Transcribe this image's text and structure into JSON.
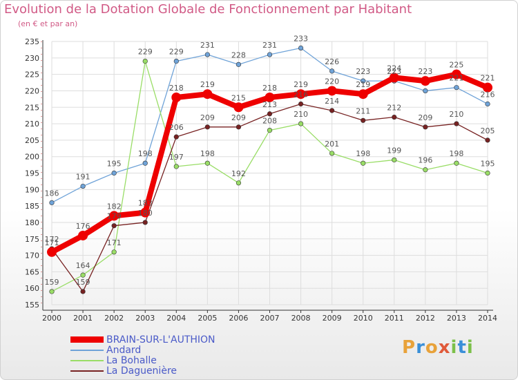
{
  "header": {
    "title": "Evolution de la Dotation Globale de Fonctionnement par Habitant",
    "subtitle": "(en € et par an)"
  },
  "logo": {
    "text": "Proxiti",
    "letters": [
      {
        "ch": "P",
        "color": "#e8a23a"
      },
      {
        "ch": "r",
        "color": "#3a8fd8"
      },
      {
        "ch": "o",
        "color": "#e8a23a"
      },
      {
        "ch": "x",
        "color": "#e05a3a"
      },
      {
        "ch": "i",
        "color": "#7cc04a"
      },
      {
        "ch": "t",
        "color": "#3a8fd8"
      },
      {
        "ch": "i",
        "color": "#7cc04a"
      }
    ]
  },
  "chart_data": {
    "type": "line",
    "title": "Evolution de la Dotation Globale de Fonctionnement par Habitant",
    "subtitle": "(en € et par an)",
    "xlabel": "",
    "ylabel": "",
    "x": [
      "2000",
      "2001",
      "2002",
      "2003",
      "2004",
      "2005",
      "2006",
      "2007",
      "2008",
      "2009",
      "2010",
      "2011",
      "2012",
      "2013",
      "2014"
    ],
    "ylim": [
      155,
      235
    ],
    "yticks": [
      155,
      160,
      165,
      170,
      175,
      180,
      185,
      190,
      195,
      200,
      205,
      210,
      215,
      220,
      225,
      230,
      235
    ],
    "grid": true,
    "legend_position": "bottom-left",
    "series": [
      {
        "name": "BRAIN-SUR-L'AUTHION",
        "color": "#ee0000",
        "emphasis": true,
        "values": [
          171,
          176,
          182,
          183,
          218,
          219,
          215,
          218,
          219,
          220,
          219,
          224,
          223,
          225,
          221
        ],
        "labels_shown": [
          true,
          true,
          true,
          true,
          true,
          true,
          true,
          true,
          true,
          true,
          true,
          true,
          true,
          true,
          true
        ]
      },
      {
        "name": "Andard",
        "color": "#6fa3d8",
        "emphasis": false,
        "values": [
          186,
          191,
          195,
          198,
          229,
          231,
          228,
          231,
          233,
          226,
          223,
          223,
          220,
          221,
          216
        ],
        "labels_shown": [
          true,
          true,
          true,
          true,
          true,
          true,
          true,
          true,
          true,
          true,
          true,
          true,
          false,
          true,
          true
        ]
      },
      {
        "name": "La Bohalle",
        "color": "#99dd66",
        "emphasis": false,
        "values": [
          159,
          164,
          171,
          229,
          197,
          198,
          192,
          208,
          210,
          201,
          198,
          199,
          196,
          198,
          195
        ],
        "labels_shown": [
          true,
          true,
          true,
          true,
          true,
          true,
          true,
          true,
          true,
          true,
          true,
          true,
          true,
          true,
          true
        ]
      },
      {
        "name": "La Daguenière",
        "color": "#772222",
        "emphasis": false,
        "values": [
          172,
          159,
          179,
          180,
          206,
          209,
          209,
          213,
          216,
          214,
          211,
          212,
          209,
          210,
          205
        ],
        "labels_shown": [
          true,
          true,
          true,
          true,
          true,
          true,
          true,
          true,
          true,
          true,
          true,
          true,
          true,
          true,
          true
        ]
      }
    ]
  }
}
